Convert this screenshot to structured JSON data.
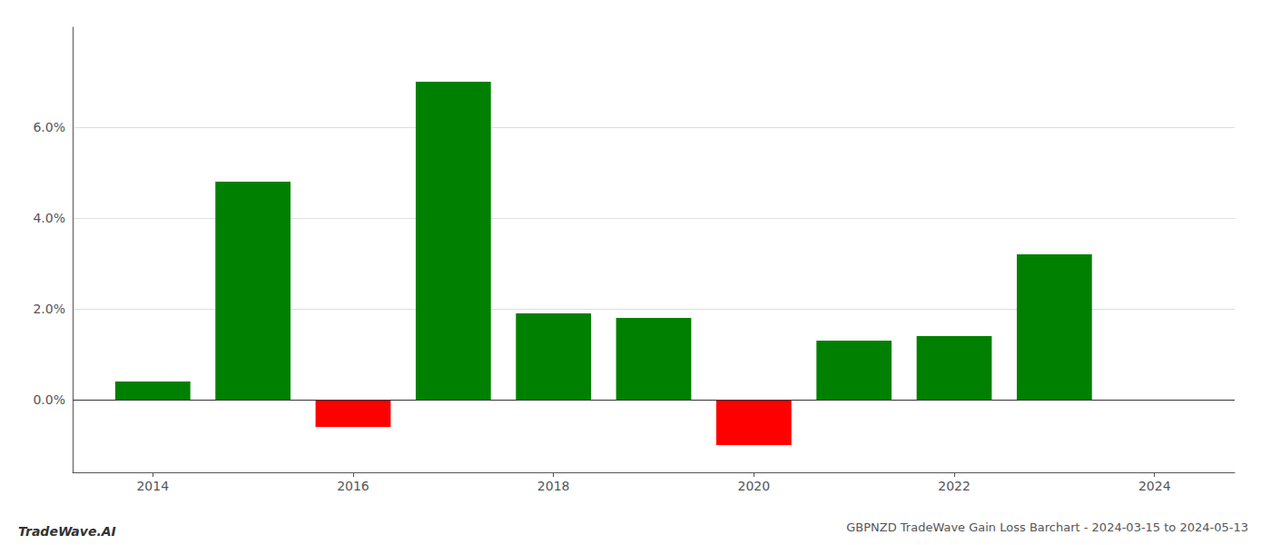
{
  "chart_data": {
    "type": "bar",
    "title": "GBPNZD TradeWave Gain Loss Barchart - 2024-03-15 to 2024-05-13",
    "annotations": [
      "TradeWave.AI"
    ],
    "x": [
      2014,
      2015,
      2016,
      2017,
      2018,
      2019,
      2020,
      2021,
      2022,
      2023
    ],
    "values": [
      0.004,
      0.048,
      -0.006,
      0.07,
      0.019,
      0.018,
      -0.01,
      0.013,
      0.014,
      0.032
    ],
    "colors": [
      "#008000",
      "#008000",
      "#ff0000",
      "#008000",
      "#008000",
      "#008000",
      "#ff0000",
      "#008000",
      "#008000",
      "#008000"
    ],
    "xlim": [
      2013.2,
      2024.8
    ],
    "xticks": [
      2014,
      2016,
      2018,
      2020,
      2022,
      2024
    ],
    "ylim": [
      -0.016,
      0.082
    ],
    "yticks": [
      {
        "value": 0.0,
        "label": "0.0%"
      },
      {
        "value": 0.02,
        "label": "2.0%"
      },
      {
        "value": 0.04,
        "label": "4.0%"
      },
      {
        "value": 0.06,
        "label": "6.0%"
      }
    ],
    "grid": true
  }
}
